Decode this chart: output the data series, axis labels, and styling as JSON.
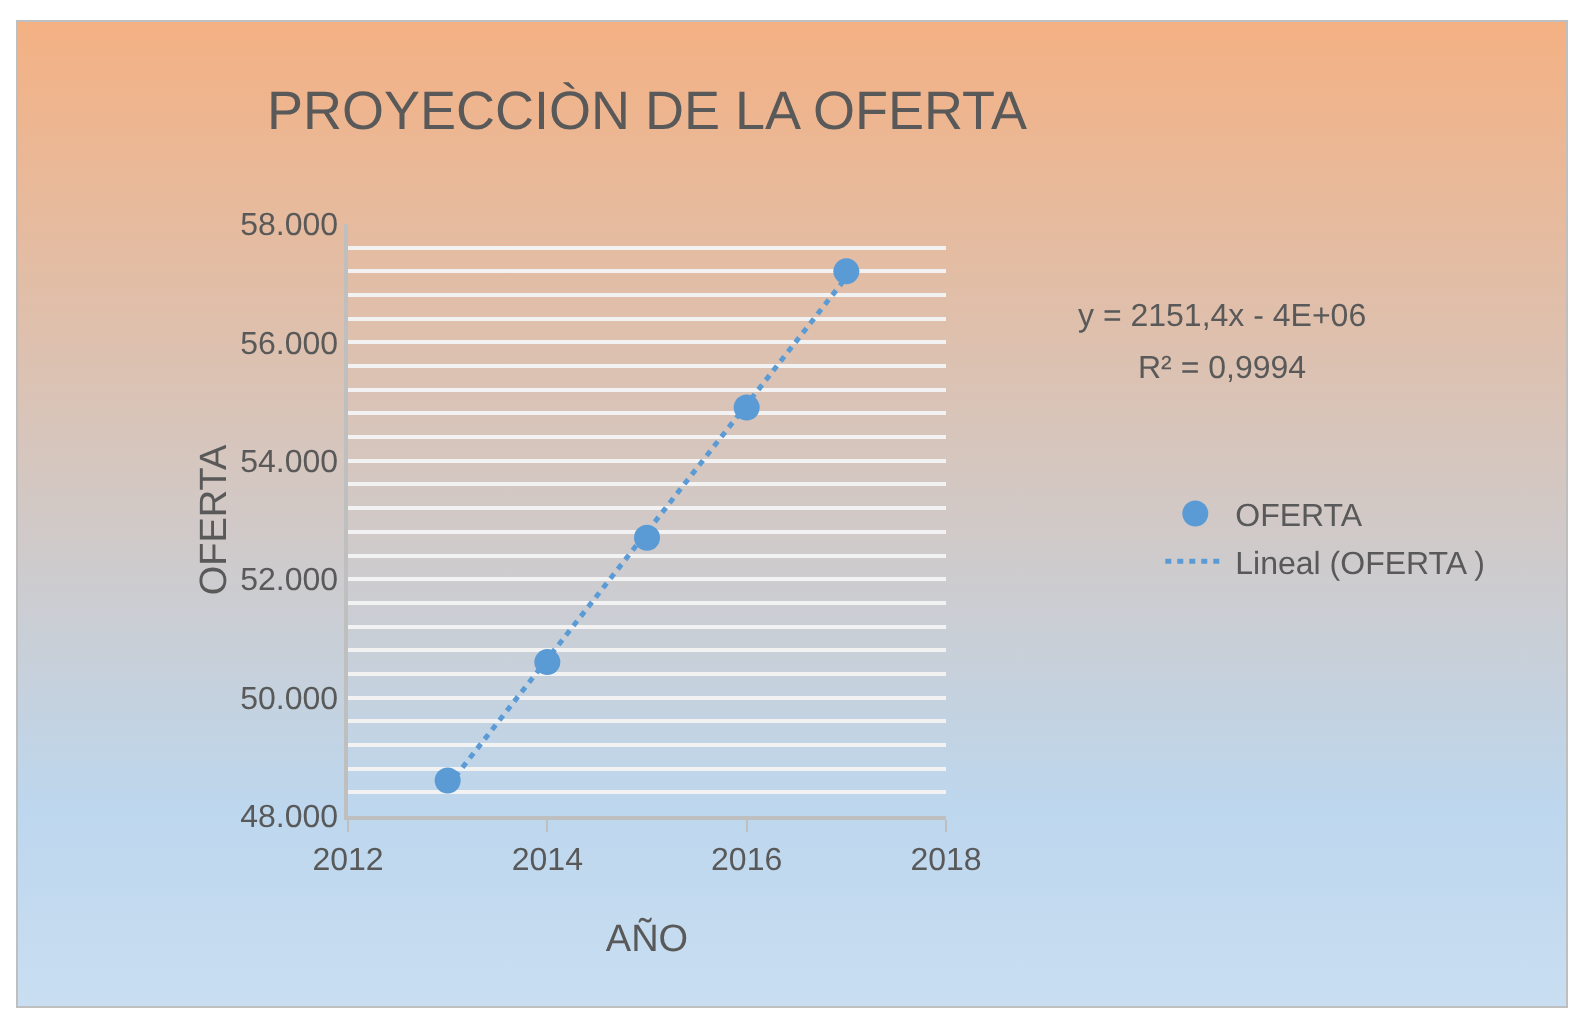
{
  "chart_data": {
    "type": "scatter",
    "title": "PROYECCIÒN DE LA OFERTA",
    "xlabel": "AÑO",
    "ylabel": "OFERTA",
    "x": [
      2013,
      2014,
      2015,
      2016,
      2017
    ],
    "series": [
      {
        "name": "OFERTA",
        "color": "#5b9bd5",
        "marker": "circle",
        "values": [
          48600,
          50600,
          52700,
          54900,
          57200
        ]
      },
      {
        "name": "Lineal (OFERTA )",
        "type": "line",
        "color": "#5b9bd5",
        "line_style": "dotted",
        "marker": "none",
        "x": [
          2013,
          2017
        ],
        "values": [
          48500,
          57100
        ]
      }
    ],
    "xlim": [
      2012,
      2018
    ],
    "xticks": [
      2012,
      2014,
      2016,
      2018
    ],
    "ylim": [
      48000,
      58000
    ],
    "yticks": [
      {
        "value": 48000,
        "label": "48.000"
      },
      {
        "value": 48400,
        "label": null
      },
      {
        "value": 48800,
        "label": null
      },
      {
        "value": 49200,
        "label": null
      },
      {
        "value": 49600,
        "label": null
      },
      {
        "value": 50000,
        "label": "50.000"
      },
      {
        "value": 50400,
        "label": null
      },
      {
        "value": 50800,
        "label": null
      },
      {
        "value": 51200,
        "label": null
      },
      {
        "value": 51600,
        "label": null
      },
      {
        "value": 52000,
        "label": "52.000"
      },
      {
        "value": 52400,
        "label": null
      },
      {
        "value": 52800,
        "label": null
      },
      {
        "value": 53200,
        "label": null
      },
      {
        "value": 53600,
        "label": null
      },
      {
        "value": 54000,
        "label": "54.000"
      },
      {
        "value": 54400,
        "label": null
      },
      {
        "value": 54800,
        "label": null
      },
      {
        "value": 55200,
        "label": null
      },
      {
        "value": 55600,
        "label": null
      },
      {
        "value": 56000,
        "label": "56.000"
      },
      {
        "value": 56400,
        "label": null
      },
      {
        "value": 56800,
        "label": null
      },
      {
        "value": 57200,
        "label": null
      },
      {
        "value": 57600,
        "label": null
      },
      {
        "value": 58000,
        "label": "58.000"
      }
    ],
    "grid": "y",
    "legend": "right",
    "annotations": [
      "y = 2151,4x - 4E+06",
      "R² = 0,9994"
    ]
  }
}
